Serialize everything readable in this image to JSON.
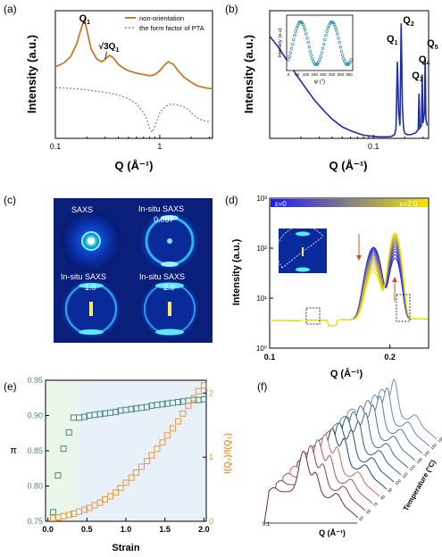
{
  "panel_letters": [
    "(a)",
    "(b)",
    "(c)",
    "(d)",
    "(e)",
    "(f)"
  ],
  "chart_data": [
    {
      "panel": "(a)",
      "type": "line",
      "xlabel": "Q  (Å⁻¹)",
      "ylabel": "Intensity (a.u.)",
      "xscale": "log",
      "xlim": [
        0.1,
        3.2
      ],
      "xticks": [
        "0.1",
        "1"
      ],
      "legend": "top-right",
      "colors": {
        "non_orientation": "#c8782a",
        "form_factor": "#888888"
      },
      "series": [
        {
          "name": "non-orientation",
          "x": [
            0.1,
            0.12,
            0.14,
            0.16,
            0.18,
            0.19,
            0.2,
            0.22,
            0.25,
            0.28,
            0.3,
            0.33,
            0.36,
            0.4,
            0.45,
            0.5,
            0.55,
            0.6,
            0.7,
            0.8,
            0.9,
            1.0,
            1.1,
            1.2,
            1.35,
            1.5,
            1.7,
            2.0,
            2.3,
            2.6,
            3.0,
            3.2
          ],
          "y": [
            0.56,
            0.59,
            0.64,
            0.74,
            0.88,
            0.93,
            0.85,
            0.7,
            0.62,
            0.6,
            0.62,
            0.65,
            0.63,
            0.58,
            0.55,
            0.53,
            0.52,
            0.51,
            0.5,
            0.49,
            0.5,
            0.53,
            0.57,
            0.6,
            0.58,
            0.53,
            0.48,
            0.44,
            0.41,
            0.4,
            0.39,
            0.39
          ]
        },
        {
          "name": "the form factor of PTA",
          "x": [
            0.1,
            0.15,
            0.2,
            0.3,
            0.4,
            0.5,
            0.6,
            0.7,
            0.75,
            0.8,
            0.85,
            0.9,
            0.95,
            1.0,
            1.1,
            1.2,
            1.3,
            1.5,
            1.8,
            2.0,
            2.3,
            2.6,
            3.0
          ],
          "y": [
            0.4,
            0.39,
            0.38,
            0.36,
            0.34,
            0.31,
            0.27,
            0.2,
            0.15,
            0.08,
            0.05,
            0.1,
            0.15,
            0.2,
            0.24,
            0.26,
            0.27,
            0.26,
            0.24,
            0.2,
            0.16,
            0.14,
            0.13
          ]
        }
      ],
      "annotations": [
        {
          "text": "Q",
          "sub": "1",
          "x": 0.19
        },
        {
          "text": "√3Q",
          "sub": "1",
          "x": 0.33
        }
      ]
    },
    {
      "panel": "(b)",
      "type": "line",
      "xlabel": "Q  (Å⁻¹)",
      "ylabel": "Intensity (a.u.)",
      "xscale": "log",
      "xlim": [
        0.01,
        0.34
      ],
      "xticks": [
        "0.1"
      ],
      "color": "#1f2d9e",
      "series": [
        {
          "name": "",
          "x": [
            0.01,
            0.012,
            0.015,
            0.018,
            0.022,
            0.027,
            0.033,
            0.04,
            0.05,
            0.06,
            0.07,
            0.08,
            0.09,
            0.1,
            0.11,
            0.12,
            0.13,
            0.14,
            0.15,
            0.16,
            0.165,
            0.17,
            0.175,
            0.18,
            0.185,
            0.19,
            0.195,
            0.2,
            0.21,
            0.22,
            0.23,
            0.24,
            0.25,
            0.26,
            0.27,
            0.275,
            0.28,
            0.29,
            0.295,
            0.3,
            0.31,
            0.315,
            0.32,
            0.33
          ],
          "y": [
            0.8,
            0.72,
            0.6,
            0.5,
            0.4,
            0.3,
            0.22,
            0.15,
            0.09,
            0.06,
            0.04,
            0.025,
            0.02,
            0.015,
            0.013,
            0.012,
            0.012,
            0.013,
            0.016,
            0.03,
            0.08,
            0.6,
            0.2,
            0.1,
            0.9,
            0.25,
            0.08,
            0.04,
            0.03,
            0.028,
            0.03,
            0.035,
            0.04,
            0.05,
            0.07,
            0.35,
            0.08,
            0.1,
            0.5,
            0.12,
            0.2,
            0.62,
            0.15,
            0.1
          ]
        }
      ],
      "peak_labels": [
        {
          "text": "Q",
          "sub": "1",
          "x": 0.17
        },
        {
          "text": "Q",
          "sub": "2",
          "x": 0.185
        },
        {
          "text": "Q",
          "sub": "3",
          "x": 0.275
        },
        {
          "text": "Q",
          "sub": "4",
          "x": 0.295
        },
        {
          "text": "Q",
          "sub": "5",
          "x": 0.315
        }
      ],
      "inset": {
        "type": "scatter",
        "xlabel": "φ (°)",
        "ylabel": "Intensity (a.u)",
        "xlim": [
          0,
          360
        ],
        "xticks": [
          "0",
          "50",
          "100",
          "150",
          "200",
          "250",
          "300",
          "350"
        ],
        "color": "#2a8aa8"
      }
    },
    {
      "panel": "(c)",
      "type": "image-grid",
      "labels": [
        "SAXS",
        "In-situ SAXS\n0.067",
        "In-situ SAXS\n1.0",
        "In-situ SAXS\n2.0"
      ],
      "label_lines": [
        [
          "SAXS"
        ],
        [
          "In-situ SAXS",
          "0.067"
        ],
        [
          "In-situ SAXS",
          "1.0"
        ],
        [
          "In-situ SAXS",
          "2.0"
        ]
      ]
    },
    {
      "panel": "(d)",
      "type": "line",
      "xlabel": "Q (Å⁻¹)",
      "ylabel": "Intensity (a.u.)",
      "xscale": "log",
      "yscale": "log",
      "xlim": [
        0.1,
        0.25
      ],
      "ylim": [
        1,
        1000
      ],
      "xticks": [
        "0.1",
        "0.2"
      ],
      "yticks": [
        "10⁰",
        "10¹",
        "10²",
        "10³"
      ],
      "colorbar": {
        "left": "ε=0",
        "right": "ε=2.0",
        "from": "#1a1aff",
        "to": "#f5e600"
      }
    },
    {
      "panel": "(e)",
      "type": "scatter",
      "xlabel": "Strain",
      "ylabel_left": "π",
      "ylabel_right": "I(Q₂)/I(Q₁)",
      "xlim": [
        0,
        2.0
      ],
      "ylim_left": [
        0.75,
        0.95
      ],
      "ylim_right": [
        0,
        2.2
      ],
      "xticks": [
        "0.0",
        "0.5",
        "1.0",
        "1.5",
        "2.0"
      ],
      "yticks_left": [
        "0.75",
        "0.80",
        "0.85",
        "0.90",
        "0.95"
      ],
      "yticks_right": [
        "0",
        "1",
        "2"
      ],
      "colors": {
        "left": "#4a8a7a",
        "right": "#e89a3a"
      },
      "series": [
        {
          "name": "",
          "axis": "left",
          "x": [
            0.067,
            0.13,
            0.2,
            0.27,
            0.33,
            0.4,
            0.47,
            0.53,
            0.6,
            0.67,
            0.73,
            0.8,
            0.87,
            0.93,
            1.0,
            1.07,
            1.13,
            1.2,
            1.27,
            1.33,
            1.4,
            1.47,
            1.53,
            1.6,
            1.67,
            1.73,
            1.8,
            1.87,
            1.93,
            2.0
          ],
          "y": [
            0.763,
            0.815,
            0.853,
            0.876,
            0.897,
            0.897,
            0.898,
            0.9,
            0.901,
            0.902,
            0.903,
            0.904,
            0.905,
            0.907,
            0.908,
            0.909,
            0.91,
            0.911,
            0.912,
            0.914,
            0.915,
            0.916,
            0.917,
            0.918,
            0.919,
            0.92,
            0.921,
            0.922,
            0.922,
            0.923
          ]
        },
        {
          "name": "",
          "axis": "right",
          "x": [
            0.067,
            0.13,
            0.2,
            0.27,
            0.33,
            0.4,
            0.47,
            0.53,
            0.6,
            0.67,
            0.73,
            0.8,
            0.87,
            0.93,
            1.0,
            1.07,
            1.13,
            1.2,
            1.27,
            1.33,
            1.4,
            1.47,
            1.53,
            1.6,
            1.67,
            1.73,
            1.8,
            1.87,
            1.93,
            2.0
          ],
          "y": [
            0.05,
            0.06,
            0.08,
            0.1,
            0.12,
            0.15,
            0.18,
            0.21,
            0.25,
            0.29,
            0.34,
            0.39,
            0.45,
            0.52,
            0.6,
            0.68,
            0.76,
            0.85,
            0.94,
            1.03,
            1.13,
            1.23,
            1.34,
            1.45,
            1.56,
            1.68,
            1.8,
            1.92,
            2.03,
            2.12
          ]
        }
      ]
    },
    {
      "panel": "(f)",
      "type": "line",
      "xlabel": "Q (Å⁻¹)",
      "zlabel": "Temperature (°C)",
      "xtick": "0.1",
      "ztick_labels": [
        "RT",
        "60",
        "70",
        "80",
        "90",
        "100",
        "110",
        "120",
        "130",
        "140",
        "150",
        "160"
      ]
    }
  ]
}
